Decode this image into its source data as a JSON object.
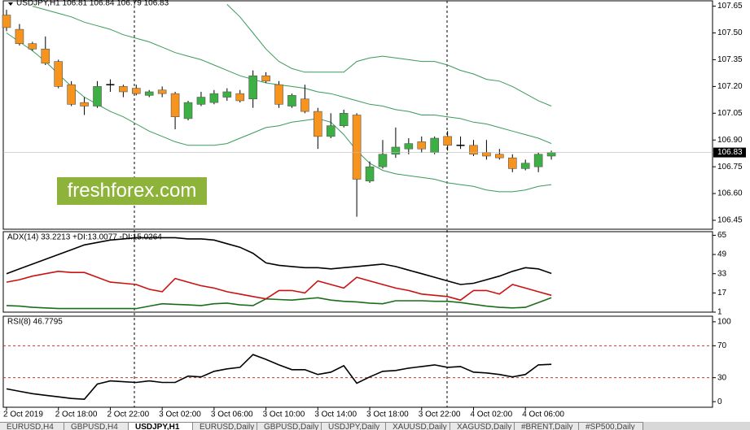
{
  "chart_data": [
    {
      "type": "candlestick",
      "title": "USDJPY,H1  106.81 106.84 106.79 106.83",
      "categories": [
        "2 Oct 2019",
        null,
        null,
        null,
        "2 Oct 18:00",
        null,
        null,
        null,
        "2 Oct 22:00",
        null,
        null,
        null,
        "3 Oct 02:00",
        null,
        null,
        null,
        "3 Oct 06:00",
        null,
        null,
        null,
        "3 Oct 10:00",
        null,
        null,
        null,
        "3 Oct 14:00",
        null,
        null,
        null,
        "3 Oct 18:00",
        null,
        null,
        null,
        "3 Oct 22:00",
        null,
        null,
        null,
        "4 Oct 02:00",
        null,
        null,
        null,
        "4 Oct 06:00",
        null,
        null
      ],
      "open": [
        107.6,
        107.52,
        107.44,
        107.41,
        107.34,
        107.21,
        107.11,
        107.09,
        107.21,
        107.2,
        107.19,
        107.15,
        107.18,
        107.16,
        107.02,
        107.1,
        107.11,
        107.14,
        107.16,
        107.13,
        107.26,
        107.21,
        107.09,
        107.13,
        107.06,
        106.92,
        106.98,
        107.04,
        106.67,
        106.75,
        106.82,
        106.85,
        106.89,
        106.83,
        106.92,
        106.87,
        106.87,
        106.83,
        106.82,
        106.8,
        106.74,
        106.75,
        106.81
      ],
      "high": [
        107.63,
        107.55,
        107.45,
        107.48,
        107.35,
        107.23,
        107.14,
        107.23,
        107.24,
        107.21,
        107.21,
        107.18,
        107.2,
        107.17,
        107.12,
        107.17,
        107.18,
        107.19,
        107.18,
        107.29,
        107.28,
        107.23,
        107.16,
        107.21,
        107.08,
        107.05,
        107.07,
        107.05,
        106.78,
        106.9,
        106.97,
        106.91,
        106.92,
        106.92,
        106.95,
        106.92,
        106.9,
        106.9,
        106.85,
        106.82,
        106.79,
        106.83,
        106.84
      ],
      "low": [
        107.51,
        107.43,
        107.4,
        107.32,
        107.19,
        107.09,
        107.04,
        107.08,
        107.17,
        107.14,
        107.15,
        107.14,
        107.14,
        106.96,
        107.01,
        107.09,
        107.1,
        107.12,
        107.11,
        107.08,
        107.22,
        107.08,
        107.08,
        107.05,
        106.85,
        106.91,
        106.97,
        106.47,
        106.66,
        106.74,
        106.8,
        106.82,
        106.83,
        106.82,
        106.84,
        106.85,
        106.81,
        106.79,
        106.79,
        106.72,
        106.73,
        106.72,
        106.79
      ],
      "close": [
        107.53,
        107.44,
        107.41,
        107.33,
        107.2,
        107.1,
        107.09,
        107.2,
        107.21,
        107.17,
        107.16,
        107.17,
        107.16,
        107.03,
        107.11,
        107.14,
        107.16,
        107.17,
        107.12,
        107.26,
        107.23,
        107.1,
        107.15,
        107.06,
        106.92,
        106.98,
        107.05,
        106.68,
        106.75,
        106.82,
        106.86,
        106.88,
        106.85,
        106.91,
        106.87,
        106.87,
        106.82,
        106.81,
        106.8,
        106.74,
        106.77,
        106.82,
        106.83
      ],
      "up_color": "#3cb043",
      "down_color": "#f7941d",
      "doji_color": "#000000",
      "series": [
        {
          "color": "#3a9a5a",
          "values": [
            null,
            null,
            null,
            null,
            null,
            null,
            null,
            null,
            null,
            null,
            null,
            null,
            null,
            null,
            null,
            null,
            null,
            107.66,
            107.59,
            107.5,
            107.41,
            107.34,
            107.3,
            107.28,
            107.28,
            107.28,
            107.28,
            107.34,
            107.36,
            107.37,
            107.36,
            107.35,
            107.34,
            107.34,
            107.32,
            107.29,
            107.27,
            107.24,
            107.23,
            107.2,
            107.16,
            107.12,
            107.09
          ]
        },
        {
          "color": "#3a9a5a",
          "values": [
            null,
            null,
            107.65,
            107.63,
            107.61,
            107.59,
            107.56,
            107.54,
            107.52,
            107.49,
            107.47,
            107.45,
            107.42,
            107.39,
            107.37,
            107.35,
            107.32,
            107.29,
            107.26,
            107.24,
            107.22,
            107.21,
            107.2,
            107.19,
            107.17,
            107.16,
            107.14,
            107.12,
            107.1,
            107.09,
            107.07,
            107.06,
            107.04,
            107.04,
            107.03,
            107.02,
            107.0,
            106.99,
            106.97,
            106.95,
            106.93,
            106.91,
            106.88
          ]
        },
        {
          "color": "#3a9a5a",
          "values": [
            107.5,
            107.45,
            107.4,
            107.34,
            107.27,
            107.2,
            107.14,
            107.1,
            107.06,
            107.03,
            106.99,
            106.95,
            106.92,
            106.89,
            106.87,
            106.87,
            106.87,
            106.88,
            106.91,
            106.94,
            106.97,
            106.98,
            107.0,
            107.01,
            107.02,
            107.0,
            106.93,
            106.84,
            106.77,
            106.73,
            106.71,
            106.7,
            106.69,
            106.68,
            106.66,
            106.65,
            106.64,
            106.62,
            106.61,
            106.61,
            106.62,
            106.64,
            106.65
          ]
        }
      ],
      "ylim": [
        106.4,
        107.68
      ],
      "yticks": [
        107.65,
        {
          "value": 107.5,
          "label": "107.50"
        },
        107.35,
        {
          "value": 107.2,
          "label": "107.20"
        },
        107.05,
        {
          "value": 106.9,
          "label": "106.90"
        },
        106.75,
        {
          "value": 106.6,
          "label": "106.60"
        },
        106.45
      ]
    },
    {
      "type": "line",
      "title": "ADX(14) 33.2213 +DI:13.0077 -DI:15.0264",
      "series": [
        {
          "color": "#000000",
          "values": [
            33,
            37,
            41,
            45,
            49,
            53,
            57,
            59,
            61,
            62,
            63,
            63,
            63,
            63,
            62,
            62,
            61,
            58,
            55,
            50,
            42,
            40,
            39,
            38,
            38,
            37,
            38,
            39,
            40,
            41,
            39,
            36,
            33,
            30,
            27,
            24,
            25,
            28,
            31,
            35,
            38,
            37,
            33.2213
          ]
        },
        {
          "color": "#1a6e1a",
          "values": [
            6.5,
            6,
            5,
            4.5,
            4,
            4,
            4,
            4,
            4,
            4,
            4,
            6,
            8,
            7.5,
            7,
            6.5,
            8,
            8.5,
            7,
            6.5,
            12,
            11.5,
            11,
            12,
            13,
            11,
            10,
            9.5,
            8.5,
            8,
            10.5,
            10.5,
            10.5,
            10,
            10,
            9,
            7.5,
            6,
            5,
            4.5,
            5,
            9,
            13.0077
          ]
        },
        {
          "color": "#cc1111",
          "values": [
            26,
            28,
            31,
            33,
            35,
            34,
            34,
            30,
            26,
            25,
            24,
            20,
            18,
            29,
            26,
            23,
            21,
            18,
            16,
            14,
            12,
            19,
            19,
            17,
            27,
            24,
            21,
            30,
            27,
            24,
            21,
            19,
            16,
            15,
            14,
            11,
            19,
            19,
            16,
            24,
            21,
            18,
            15.0264
          ]
        }
      ],
      "ylim": [
        1,
        68
      ],
      "yticks": [
        65,
        49,
        33,
        17,
        1
      ]
    },
    {
      "type": "line",
      "title": "RSI(8) 46.7795",
      "series": [
        {
          "color": "#000000",
          "values": [
            16,
            13,
            10,
            8,
            6,
            4,
            3,
            22,
            26,
            25,
            24,
            26,
            24,
            24,
            32,
            31,
            38,
            41,
            43,
            59,
            53,
            46,
            40,
            40,
            34,
            37,
            45,
            23,
            31,
            38,
            39,
            42,
            44,
            46,
            43,
            44,
            37,
            36,
            34,
            31,
            34,
            46,
            46.7795
          ]
        }
      ],
      "ylim": [
        -7,
        107
      ],
      "yticks": [
        100,
        70,
        30,
        0
      ],
      "dashed_levels": [
        70,
        30
      ],
      "level_color": "#c0392b"
    }
  ],
  "watermark": "freshforex.com",
  "tabs": [
    "EURUSD,H4",
    "GBPUSD,H4",
    "USDJPY,H1",
    "EURUSD,Daily",
    "GBPUSD,Daily",
    "USDJPY,Daily",
    "XAUUSD,Daily",
    "XAGUSD,Daily",
    "#BRENT,Daily",
    "#SP500,Daily"
  ],
  "active_tab": 2
}
